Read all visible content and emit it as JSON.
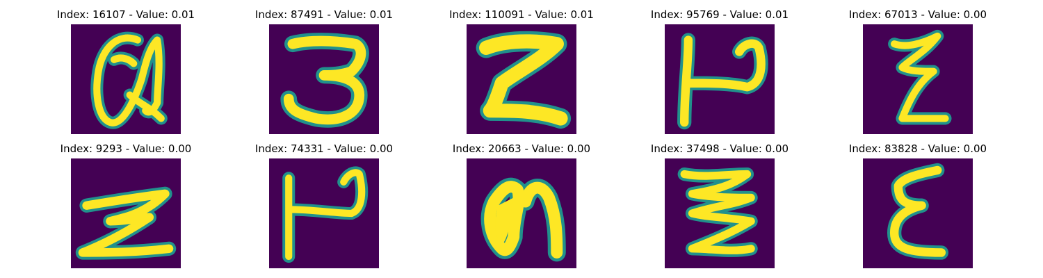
{
  "colors": {
    "background": "#440154",
    "stroke": "#fde725",
    "edge": "#21918c"
  },
  "panels": [
    {
      "title": "Index: 16107 - Value: 0.01",
      "glyph": "script-a"
    },
    {
      "title": "Index: 87491 - Value: 0.01",
      "glyph": "three"
    },
    {
      "title": "Index: 110091 - Value: 0.01",
      "glyph": "z-bold"
    },
    {
      "title": "Index: 95769 - Value: 0.01",
      "glyph": "h-rotated"
    },
    {
      "title": "Index: 67013 - Value: 0.00",
      "glyph": "z-tall"
    },
    {
      "title": "Index: 9293 - Value: 0.00",
      "glyph": "z-wide"
    },
    {
      "title": "Index: 74331 - Value: 0.00",
      "glyph": "h-rotated"
    },
    {
      "title": "Index: 20663 - Value: 0.00",
      "glyph": "n-blob"
    },
    {
      "title": "Index: 37498 - Value: 0.00",
      "glyph": "z-wavy"
    },
    {
      "title": "Index: 83828 - Value: 0.00",
      "glyph": "epsilon"
    }
  ]
}
